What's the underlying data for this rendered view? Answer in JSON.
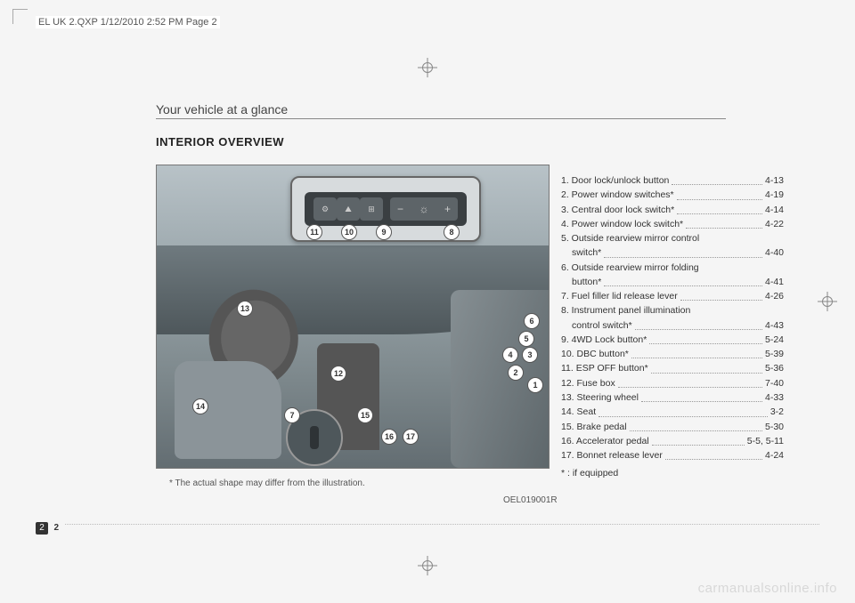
{
  "header": "EL UK 2.QXP  1/12/2010  2:52 PM  Page 2",
  "section_title": "Your vehicle at a glance",
  "heading": "INTERIOR OVERVIEW",
  "caption": "* The actual shape may differ from the illustration.",
  "figure_code": "OEL019001R",
  "inset": {
    "minus": "−",
    "symbol": "☼",
    "plus": "+"
  },
  "callouts": {
    "1": "1",
    "2": "2",
    "3": "3",
    "4": "4",
    "5": "5",
    "6": "6",
    "7": "7",
    "8": "8",
    "9": "9",
    "10": "10",
    "11": "11",
    "12": "12",
    "13": "13",
    "14": "14",
    "15": "15",
    "16": "16",
    "17": "17"
  },
  "items": [
    {
      "label": "1. Door lock/unlock button",
      "page": "4-13"
    },
    {
      "label": "2. Power window switches*",
      "page": "4-19"
    },
    {
      "label": "3. Central door lock switch*",
      "page": "4-14"
    },
    {
      "label": "4. Power window lock switch*",
      "page": "4-22"
    },
    {
      "label": "5. Outside rearview mirror control",
      "sub": "switch*",
      "page": "4-40"
    },
    {
      "label": "6. Outside rearview mirror folding",
      "sub": "button*",
      "page": "4-41"
    },
    {
      "label": "7. Fuel filler lid release lever",
      "page": "4-26"
    },
    {
      "label": "8. Instrument panel illumination",
      "sub": "control switch*",
      "page": "4-43"
    },
    {
      "label": "9. 4WD Lock button*",
      "page": "5-24"
    },
    {
      "label": "10. DBC button*",
      "page": "5-39"
    },
    {
      "label": "11. ESP OFF button*",
      "page": "5-36"
    },
    {
      "label": "12. Fuse box",
      "page": "7-40"
    },
    {
      "label": "13. Steering wheel",
      "page": "4-33"
    },
    {
      "label": "14. Seat",
      "page": "3-2"
    },
    {
      "label": "15. Brake pedal",
      "page": "5-30"
    },
    {
      "label": "16. Accelerator pedal",
      "page": "5-5, 5-11"
    },
    {
      "label": "17. Bonnet release lever",
      "page": "4-24"
    }
  ],
  "footnote": "* : if equipped",
  "page_chapter": "2",
  "page_number": "2",
  "watermark": "carmanualsonline.info"
}
